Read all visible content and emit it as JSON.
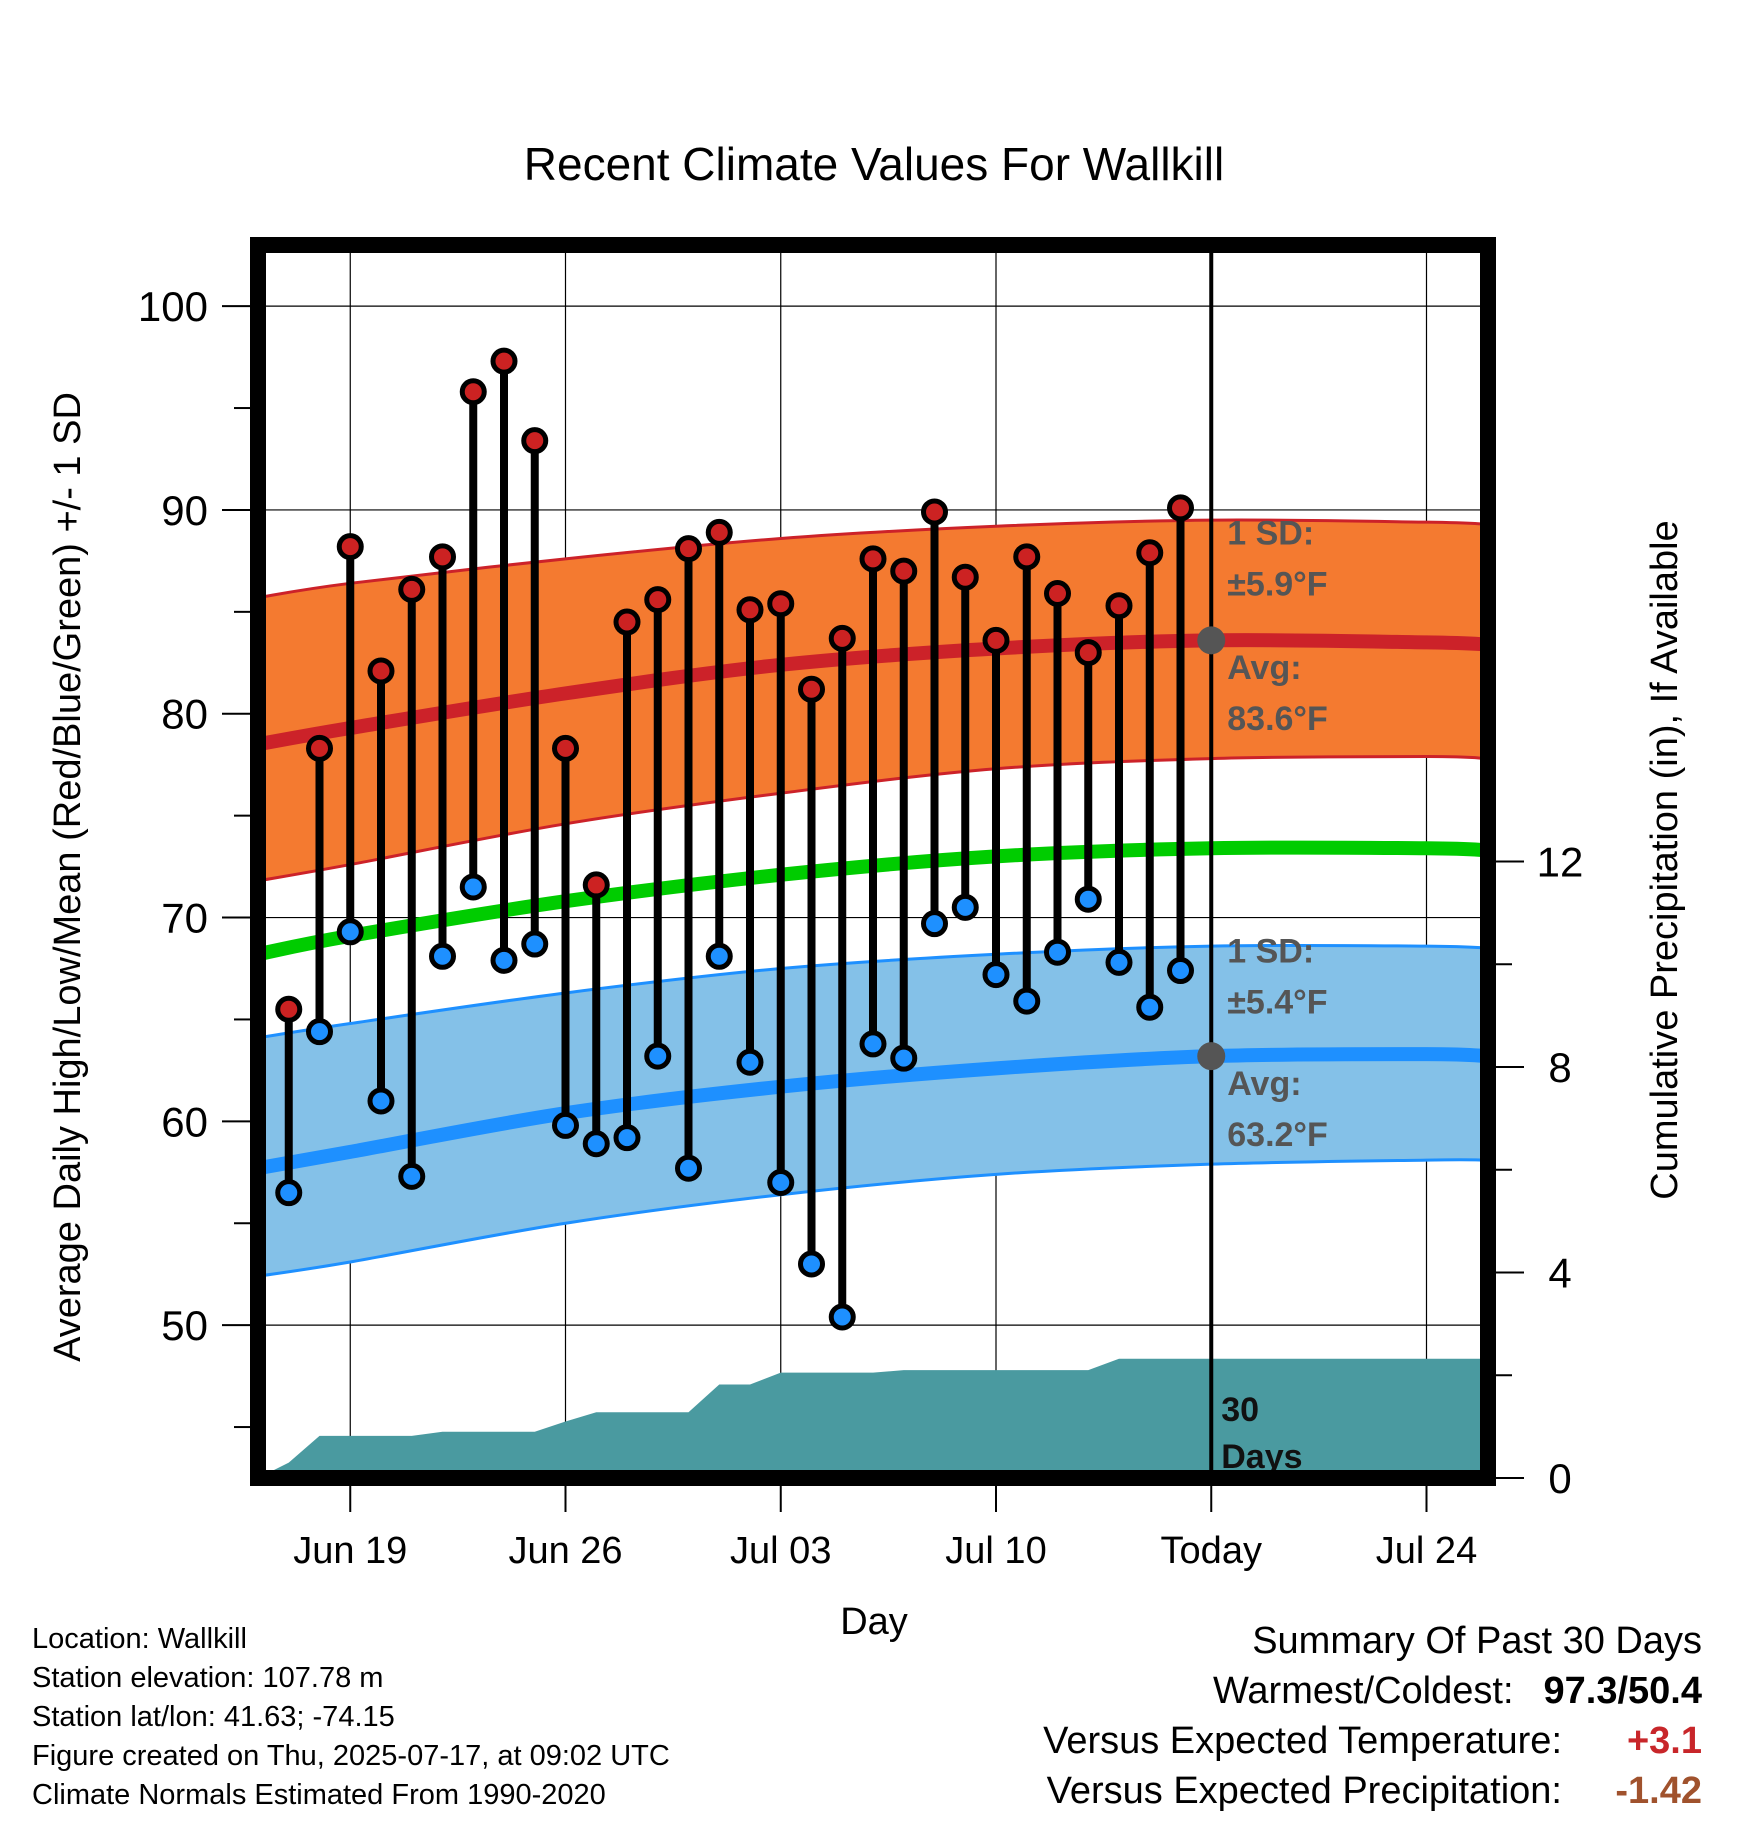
{
  "chart_data": {
    "type": "line",
    "title": "Recent Climate Values For Wallkill",
    "xlabel": "Day",
    "ylabel": "Average Daily High/Low/Mean (Red/Blue/Green) +/- 1 SD",
    "y2label": "Cumulative Precipitation (in), If Available",
    "ylim": [
      42.5,
      103
    ],
    "y2lim": [
      0,
      24
    ],
    "y_ticks": [
      50,
      60,
      70,
      80,
      90,
      100
    ],
    "y2_ticks": [
      0,
      4,
      8,
      12
    ],
    "x_range": [
      "Jun 16",
      "Jul 26"
    ],
    "x_ticks": [
      "Jun 19",
      "Jun 26",
      "Jul 03",
      "Jul 10",
      "Today",
      "Jul 24"
    ],
    "today_marker": "Jul 17",
    "grid": true,
    "daily": {
      "dates": [
        "Jun 17",
        "Jun 18",
        "Jun 19",
        "Jun 20",
        "Jun 21",
        "Jun 22",
        "Jun 23",
        "Jun 24",
        "Jun 25",
        "Jun 26",
        "Jun 27",
        "Jun 28",
        "Jun 29",
        "Jun 30",
        "Jul 01",
        "Jul 02",
        "Jul 03",
        "Jul 04",
        "Jul 05",
        "Jul 06",
        "Jul 07",
        "Jul 08",
        "Jul 09",
        "Jul 10",
        "Jul 11",
        "Jul 12",
        "Jul 13",
        "Jul 14",
        "Jul 15",
        "Jul 16"
      ],
      "high": [
        65.5,
        78.3,
        88.2,
        82.1,
        86.1,
        87.7,
        95.8,
        97.3,
        93.4,
        78.3,
        71.6,
        84.5,
        85.6,
        88.1,
        88.9,
        85.1,
        85.4,
        81.2,
        83.7,
        87.6,
        87.0,
        89.9,
        86.7,
        83.6,
        87.7,
        85.9,
        83.0,
        85.3,
        87.9,
        90.1
      ],
      "low": [
        56.5,
        64.4,
        69.3,
        61.0,
        57.3,
        68.1,
        71.5,
        67.9,
        68.7,
        59.8,
        58.9,
        59.2,
        63.2,
        57.7,
        68.1,
        62.9,
        57.0,
        53.0,
        50.4,
        63.8,
        63.1,
        69.7,
        70.5,
        67.2,
        65.9,
        68.3,
        70.9,
        67.8,
        65.6,
        67.4
      ]
    },
    "normals": {
      "dates": [
        "Jun 16",
        "Jun 19",
        "Jun 26",
        "Jul 03",
        "Jul 10",
        "Jul 17",
        "Jul 24",
        "Jul 26"
      ],
      "high_avg": [
        78.5,
        79.3,
        81.0,
        82.4,
        83.2,
        83.6,
        83.5,
        83.4
      ],
      "high_plus_sd": [
        85.7,
        86.4,
        87.6,
        88.6,
        89.2,
        89.5,
        89.4,
        89.3
      ],
      "high_minus_sd": [
        71.8,
        72.6,
        74.6,
        76.1,
        77.3,
        77.8,
        77.9,
        77.8
      ],
      "mean_avg": [
        68.2,
        69.1,
        70.8,
        72.1,
        73.0,
        73.4,
        73.4,
        73.3
      ],
      "low_avg": [
        57.7,
        58.5,
        60.4,
        61.7,
        62.6,
        63.2,
        63.3,
        63.2
      ],
      "low_plus_sd": [
        64.1,
        64.8,
        66.3,
        67.5,
        68.2,
        68.6,
        68.6,
        68.5
      ],
      "low_minus_sd": [
        52.4,
        53.1,
        55.0,
        56.4,
        57.4,
        57.9,
        58.1,
        58.1
      ]
    },
    "precip_cumulative": {
      "dates": [
        "Jun 16",
        "Jun 17",
        "Jun 18",
        "Jun 19",
        "Jun 20",
        "Jun 21",
        "Jun 22",
        "Jun 23",
        "Jun 24",
        "Jun 25",
        "Jun 26",
        "Jun 27",
        "Jun 28",
        "Jun 29",
        "Jun 30",
        "Jul 01",
        "Jul 02",
        "Jul 03",
        "Jul 04",
        "Jul 05",
        "Jul 06",
        "Jul 07",
        "Jul 08",
        "Jul 09",
        "Jul 10",
        "Jul 11",
        "Jul 12",
        "Jul 13",
        "Jul 14",
        "Jul 15",
        "Jul 16",
        "Jul 17",
        "Jul 26"
      ],
      "values": [
        0.0,
        0.3,
        0.82,
        0.82,
        0.82,
        0.82,
        0.9,
        0.9,
        0.9,
        0.9,
        1.1,
        1.28,
        1.28,
        1.28,
        1.28,
        1.82,
        1.82,
        2.05,
        2.05,
        2.05,
        2.05,
        2.1,
        2.1,
        2.1,
        2.1,
        2.1,
        2.1,
        2.1,
        2.32,
        2.32,
        2.32,
        2.32,
        2.32
      ]
    },
    "annotations": {
      "high_sd_label": "1 SD:",
      "high_sd_value": "±5.9°F",
      "high_avg_label": "Avg:",
      "high_avg_value": "83.6°F",
      "low_sd_label": "1 SD:",
      "low_sd_value": "±5.4°F",
      "low_avg_label": "Avg:",
      "low_avg_value": "63.2°F",
      "days_label_1": "30",
      "days_label_2": "Days"
    },
    "colors": {
      "high_band": "#f47a30",
      "high_line": "#cc2229",
      "low_band": "#84c1e8",
      "low_line": "#1e90ff",
      "mean_line": "#00cc00",
      "precip": "#4a9aa0",
      "high_dot": "#cc2222",
      "low_dot": "#1e90ff",
      "annotation": "#555555"
    }
  },
  "info": {
    "location": "Location: Wallkill",
    "elevation": "Station elevation: 107.78 m",
    "latlon": "Station lat/lon: 41.63; -74.15",
    "created": "Figure created on Thu, 2025-07-17, at 09:02 UTC",
    "normals": "Climate Normals Estimated From 1990-2020"
  },
  "summary": {
    "heading": "Summary Of Past 30 Days",
    "warmest_label": "Warmest/Coldest:",
    "warmest_value": "97.3/50.4",
    "temp_label": "Versus Expected Temperature:",
    "temp_value": "+3.1",
    "precip_label": "Versus Expected Precipitation:",
    "precip_value": "-1.42"
  }
}
